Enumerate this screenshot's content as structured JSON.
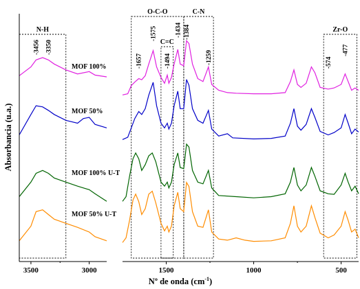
{
  "chart_data": {
    "type": "line",
    "title": "",
    "xlabel": "Nº de onda (cm",
    "xlabel_sup": "-1",
    "xlabel_close": ")",
    "ylabel": "Absorbancia (u.a.)",
    "x_axis": {
      "reversed": true,
      "xlim": [
        3600,
        400
      ],
      "ticks": [
        3500,
        3000,
        1500,
        1000,
        500
      ],
      "break": [
        2850,
        1750
      ]
    },
    "series": [
      {
        "name": "MOF 100%",
        "color": "#e020e0",
        "low": [
          [
            3600,
            0.35
          ],
          [
            3500,
            0.5
          ],
          [
            3456,
            0.62
          ],
          [
            3400,
            0.66
          ],
          [
            3350,
            0.62
          ],
          [
            3300,
            0.55
          ],
          [
            3200,
            0.45
          ],
          [
            3100,
            0.38
          ],
          [
            3000,
            0.42
          ],
          [
            2950,
            0.36
          ],
          [
            2850,
            0.33
          ]
        ],
        "high": [
          [
            1750,
            0.02
          ],
          [
            1720,
            0.04
          ],
          [
            1700,
            0.18
          ],
          [
            1680,
            0.24
          ],
          [
            1657,
            0.3
          ],
          [
            1640,
            0.28
          ],
          [
            1620,
            0.35
          ],
          [
            1600,
            0.55
          ],
          [
            1575,
            0.78
          ],
          [
            1555,
            0.5
          ],
          [
            1530,
            0.32
          ],
          [
            1510,
            0.22
          ],
          [
            1494,
            0.36
          ],
          [
            1485,
            0.22
          ],
          [
            1470,
            0.32
          ],
          [
            1455,
            0.55
          ],
          [
            1434,
            0.8
          ],
          [
            1420,
            0.55
          ],
          [
            1400,
            0.52
          ],
          [
            1384,
            0.95
          ],
          [
            1370,
            0.9
          ],
          [
            1350,
            0.55
          ],
          [
            1320,
            0.3
          ],
          [
            1290,
            0.25
          ],
          [
            1259,
            0.5
          ],
          [
            1240,
            0.2
          ],
          [
            1200,
            0.1
          ],
          [
            1150,
            0.06
          ],
          [
            1100,
            0.05
          ],
          [
            1000,
            0.04
          ],
          [
            900,
            0.04
          ],
          [
            820,
            0.06
          ],
          [
            790,
            0.25
          ],
          [
            770,
            0.45
          ],
          [
            750,
            0.2
          ],
          [
            730,
            0.15
          ],
          [
            700,
            0.22
          ],
          [
            670,
            0.5
          ],
          [
            650,
            0.4
          ],
          [
            620,
            0.15
          ],
          [
            574,
            0.12
          ],
          [
            540,
            0.14
          ],
          [
            500,
            0.2
          ],
          [
            477,
            0.38
          ],
          [
            460,
            0.25
          ],
          [
            440,
            0.1
          ],
          [
            420,
            0.14
          ],
          [
            400,
            0.1
          ]
        ]
      },
      {
        "name": "MOF 50%",
        "color": "#0000c8",
        "low": [
          [
            3600,
            0.1
          ],
          [
            3500,
            0.45
          ],
          [
            3456,
            0.6
          ],
          [
            3400,
            0.58
          ],
          [
            3350,
            0.52
          ],
          [
            3300,
            0.45
          ],
          [
            3200,
            0.35
          ],
          [
            3100,
            0.3
          ],
          [
            3050,
            0.38
          ],
          [
            3000,
            0.4
          ],
          [
            2950,
            0.28
          ],
          [
            2850,
            0.22
          ]
        ],
        "high": [
          [
            1750,
            0.02
          ],
          [
            1720,
            0.06
          ],
          [
            1700,
            0.22
          ],
          [
            1680,
            0.38
          ],
          [
            1657,
            0.5
          ],
          [
            1640,
            0.45
          ],
          [
            1620,
            0.55
          ],
          [
            1600,
            0.78
          ],
          [
            1575,
            1.0
          ],
          [
            1555,
            0.6
          ],
          [
            1530,
            0.3
          ],
          [
            1510,
            0.22
          ],
          [
            1494,
            0.3
          ],
          [
            1485,
            0.2
          ],
          [
            1470,
            0.3
          ],
          [
            1455,
            0.6
          ],
          [
            1434,
            0.85
          ],
          [
            1420,
            0.55
          ],
          [
            1400,
            0.55
          ],
          [
            1384,
            1.05
          ],
          [
            1370,
            0.95
          ],
          [
            1350,
            0.55
          ],
          [
            1320,
            0.35
          ],
          [
            1290,
            0.3
          ],
          [
            1259,
            0.52
          ],
          [
            1240,
            0.2
          ],
          [
            1200,
            0.08
          ],
          [
            1150,
            0.12
          ],
          [
            1120,
            0.05
          ],
          [
            1000,
            0.03
          ],
          [
            900,
            0.04
          ],
          [
            820,
            0.08
          ],
          [
            790,
            0.3
          ],
          [
            770,
            0.55
          ],
          [
            750,
            0.25
          ],
          [
            730,
            0.18
          ],
          [
            700,
            0.28
          ],
          [
            670,
            0.55
          ],
          [
            650,
            0.4
          ],
          [
            620,
            0.16
          ],
          [
            574,
            0.1
          ],
          [
            540,
            0.14
          ],
          [
            500,
            0.22
          ],
          [
            477,
            0.45
          ],
          [
            460,
            0.3
          ],
          [
            440,
            0.12
          ],
          [
            420,
            0.2
          ],
          [
            400,
            0.15
          ]
        ]
      },
      {
        "name": "MOF 100% U-T",
        "color": "#006400",
        "low": [
          [
            3600,
            0.1
          ],
          [
            3500,
            0.35
          ],
          [
            3456,
            0.5
          ],
          [
            3400,
            0.55
          ],
          [
            3350,
            0.5
          ],
          [
            3300,
            0.42
          ],
          [
            3200,
            0.35
          ],
          [
            3100,
            0.28
          ],
          [
            3000,
            0.22
          ],
          [
            2950,
            0.15
          ],
          [
            2850,
            0.02
          ]
        ],
        "high": [
          [
            1750,
            0.02
          ],
          [
            1730,
            0.1
          ],
          [
            1710,
            0.45
          ],
          [
            1690,
            0.75
          ],
          [
            1675,
            0.85
          ],
          [
            1657,
            0.75
          ],
          [
            1640,
            0.55
          ],
          [
            1620,
            0.65
          ],
          [
            1600,
            0.8
          ],
          [
            1580,
            0.85
          ],
          [
            1560,
            0.7
          ],
          [
            1530,
            0.35
          ],
          [
            1510,
            0.28
          ],
          [
            1494,
            0.35
          ],
          [
            1485,
            0.25
          ],
          [
            1470,
            0.35
          ],
          [
            1455,
            0.65
          ],
          [
            1434,
            0.85
          ],
          [
            1420,
            0.6
          ],
          [
            1400,
            0.58
          ],
          [
            1384,
            1.0
          ],
          [
            1370,
            0.95
          ],
          [
            1350,
            0.55
          ],
          [
            1320,
            0.35
          ],
          [
            1290,
            0.32
          ],
          [
            1259,
            0.55
          ],
          [
            1240,
            0.25
          ],
          [
            1200,
            0.12
          ],
          [
            1100,
            0.1
          ],
          [
            1000,
            0.08
          ],
          [
            900,
            0.1
          ],
          [
            820,
            0.15
          ],
          [
            790,
            0.35
          ],
          [
            770,
            0.6
          ],
          [
            750,
            0.3
          ],
          [
            730,
            0.2
          ],
          [
            700,
            0.3
          ],
          [
            670,
            0.6
          ],
          [
            650,
            0.45
          ],
          [
            620,
            0.2
          ],
          [
            574,
            0.15
          ],
          [
            540,
            0.14
          ],
          [
            500,
            0.3
          ],
          [
            477,
            0.5
          ],
          [
            460,
            0.35
          ],
          [
            440,
            0.2
          ],
          [
            420,
            0.28
          ],
          [
            400,
            0.15
          ]
        ]
      },
      {
        "name": "MOF 50% U-T",
        "color": "#ff8c00",
        "low": [
          [
            3600,
            0.05
          ],
          [
            3500,
            0.3
          ],
          [
            3456,
            0.55
          ],
          [
            3400,
            0.58
          ],
          [
            3350,
            0.5
          ],
          [
            3300,
            0.42
          ],
          [
            3200,
            0.35
          ],
          [
            3100,
            0.28
          ],
          [
            3000,
            0.2
          ],
          [
            2950,
            0.12
          ],
          [
            2850,
            0.05
          ]
        ],
        "high": [
          [
            1750,
            0.02
          ],
          [
            1730,
            0.1
          ],
          [
            1710,
            0.4
          ],
          [
            1690,
            0.75
          ],
          [
            1675,
            0.85
          ],
          [
            1657,
            0.72
          ],
          [
            1640,
            0.5
          ],
          [
            1620,
            0.6
          ],
          [
            1600,
            0.85
          ],
          [
            1580,
            0.9
          ],
          [
            1560,
            0.7
          ],
          [
            1530,
            0.35
          ],
          [
            1510,
            0.22
          ],
          [
            1494,
            0.3
          ],
          [
            1485,
            0.2
          ],
          [
            1470,
            0.3
          ],
          [
            1455,
            0.65
          ],
          [
            1434,
            0.88
          ],
          [
            1420,
            0.6
          ],
          [
            1400,
            0.55
          ],
          [
            1384,
            1.05
          ],
          [
            1370,
            0.98
          ],
          [
            1350,
            0.55
          ],
          [
            1320,
            0.3
          ],
          [
            1290,
            0.28
          ],
          [
            1259,
            0.58
          ],
          [
            1240,
            0.2
          ],
          [
            1200,
            0.08
          ],
          [
            1150,
            0.06
          ],
          [
            1100,
            0.1
          ],
          [
            1050,
            0.06
          ],
          [
            1000,
            0.04
          ],
          [
            900,
            0.05
          ],
          [
            820,
            0.1
          ],
          [
            790,
            0.35
          ],
          [
            770,
            0.65
          ],
          [
            750,
            0.3
          ],
          [
            730,
            0.2
          ],
          [
            700,
            0.3
          ],
          [
            670,
            0.65
          ],
          [
            650,
            0.45
          ],
          [
            620,
            0.18
          ],
          [
            574,
            0.1
          ],
          [
            540,
            0.15
          ],
          [
            500,
            0.3
          ],
          [
            477,
            0.55
          ],
          [
            460,
            0.4
          ],
          [
            440,
            0.2
          ],
          [
            420,
            0.25
          ],
          [
            400,
            0.1
          ]
        ]
      }
    ],
    "regions": [
      {
        "label": "N-H",
        "x": [
          3600,
          3200
        ]
      },
      {
        "label": "O-C-O",
        "x": [
          1700,
          1400
        ]
      },
      {
        "label": "C=C",
        "x": [
          1530,
          1460
        ]
      },
      {
        "label": "C-N",
        "x": [
          1400,
          1230
        ]
      },
      {
        "label": "Zr-O",
        "x": [
          600,
          410
        ]
      }
    ],
    "peaks": [
      {
        "label": "3456",
        "x": 3456
      },
      {
        "label": "3350",
        "x": 3350
      },
      {
        "label": "1657",
        "x": 1657
      },
      {
        "label": "1575",
        "x": 1575
      },
      {
        "label": "1494",
        "x": 1494
      },
      {
        "label": "1434",
        "x": 1434
      },
      {
        "label": "1384",
        "x": 1384
      },
      {
        "label": "1259",
        "x": 1259
      },
      {
        "label": "574",
        "x": 574
      },
      {
        "label": "477",
        "x": 477
      }
    ]
  }
}
